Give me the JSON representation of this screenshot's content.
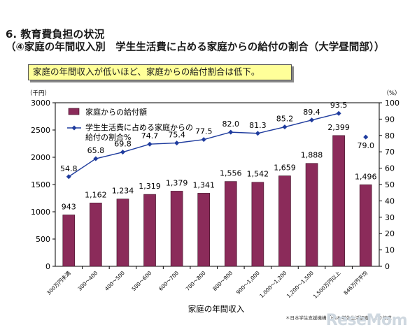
{
  "header": {
    "line1": "6. 教育費負担の状況",
    "line2": "（④家庭の年間収入別　学生生活費に占める家庭からの給付の割合（大学昼間部））"
  },
  "callout": "家庭の年間収入が低いほど、家庭からの給付割合は低下。",
  "footnote": "＊日本学生支援機構「H18 学生生活調査」より作成",
  "watermark": "ReseMom",
  "chart_data": {
    "type": "bar",
    "categories": [
      "300万円未満",
      "300〜400",
      "400〜500",
      "500〜600",
      "600〜700",
      "700〜800",
      "800〜900",
      "900〜1,000",
      "1,000〜1,200",
      "1,200〜1,500",
      "1,500万円以上",
      "846万円平均"
    ],
    "series": [
      {
        "name": "家庭からの給付額",
        "kind": "bar",
        "axis": "left",
        "color": "#8b2b5a",
        "values": [
          943,
          1162,
          1234,
          1319,
          1379,
          1341,
          1556,
          1542,
          1659,
          1888,
          2399,
          1496
        ]
      },
      {
        "name": "学生生活費に占める家庭からの給付の割合%",
        "kind": "line",
        "axis": "right",
        "color": "#1f3c9e",
        "values": [
          54.8,
          65.8,
          69.8,
          74.7,
          75.4,
          77.5,
          82.0,
          81.3,
          85.2,
          89.4,
          93.5,
          79.0
        ],
        "connected_points": 11
      }
    ],
    "bar_labels": [
      "943",
      "1,162",
      "1,234",
      "1,319",
      "1,379",
      "1,341",
      "1,556",
      "1,542",
      "1,659",
      "1,888",
      "2,399",
      "1,496"
    ],
    "line_labels": [
      "54.8",
      "65.8",
      "69.8",
      "74.7",
      "75.4",
      "77.5",
      "82.0",
      "81.3",
      "85.2",
      "89.4",
      "93.5",
      "79.0"
    ],
    "legend": {
      "bar": "家庭からの給付額",
      "line1": "学生生活費に占める家庭からの",
      "line2": "給付の割合%"
    },
    "xlabel": "家庭の年間収入",
    "y_left": {
      "unit": "（千円）",
      "ticks": [
        "0",
        "500",
        "1000",
        "1500",
        "2000",
        "2500",
        "3000"
      ],
      "min": 0,
      "max": 3000
    },
    "y_right": {
      "unit": "（%）",
      "ticks": [
        "0",
        "10",
        "20",
        "30",
        "40",
        "50",
        "60",
        "70",
        "80",
        "90",
        "100"
      ],
      "min": 0,
      "max": 100
    }
  }
}
